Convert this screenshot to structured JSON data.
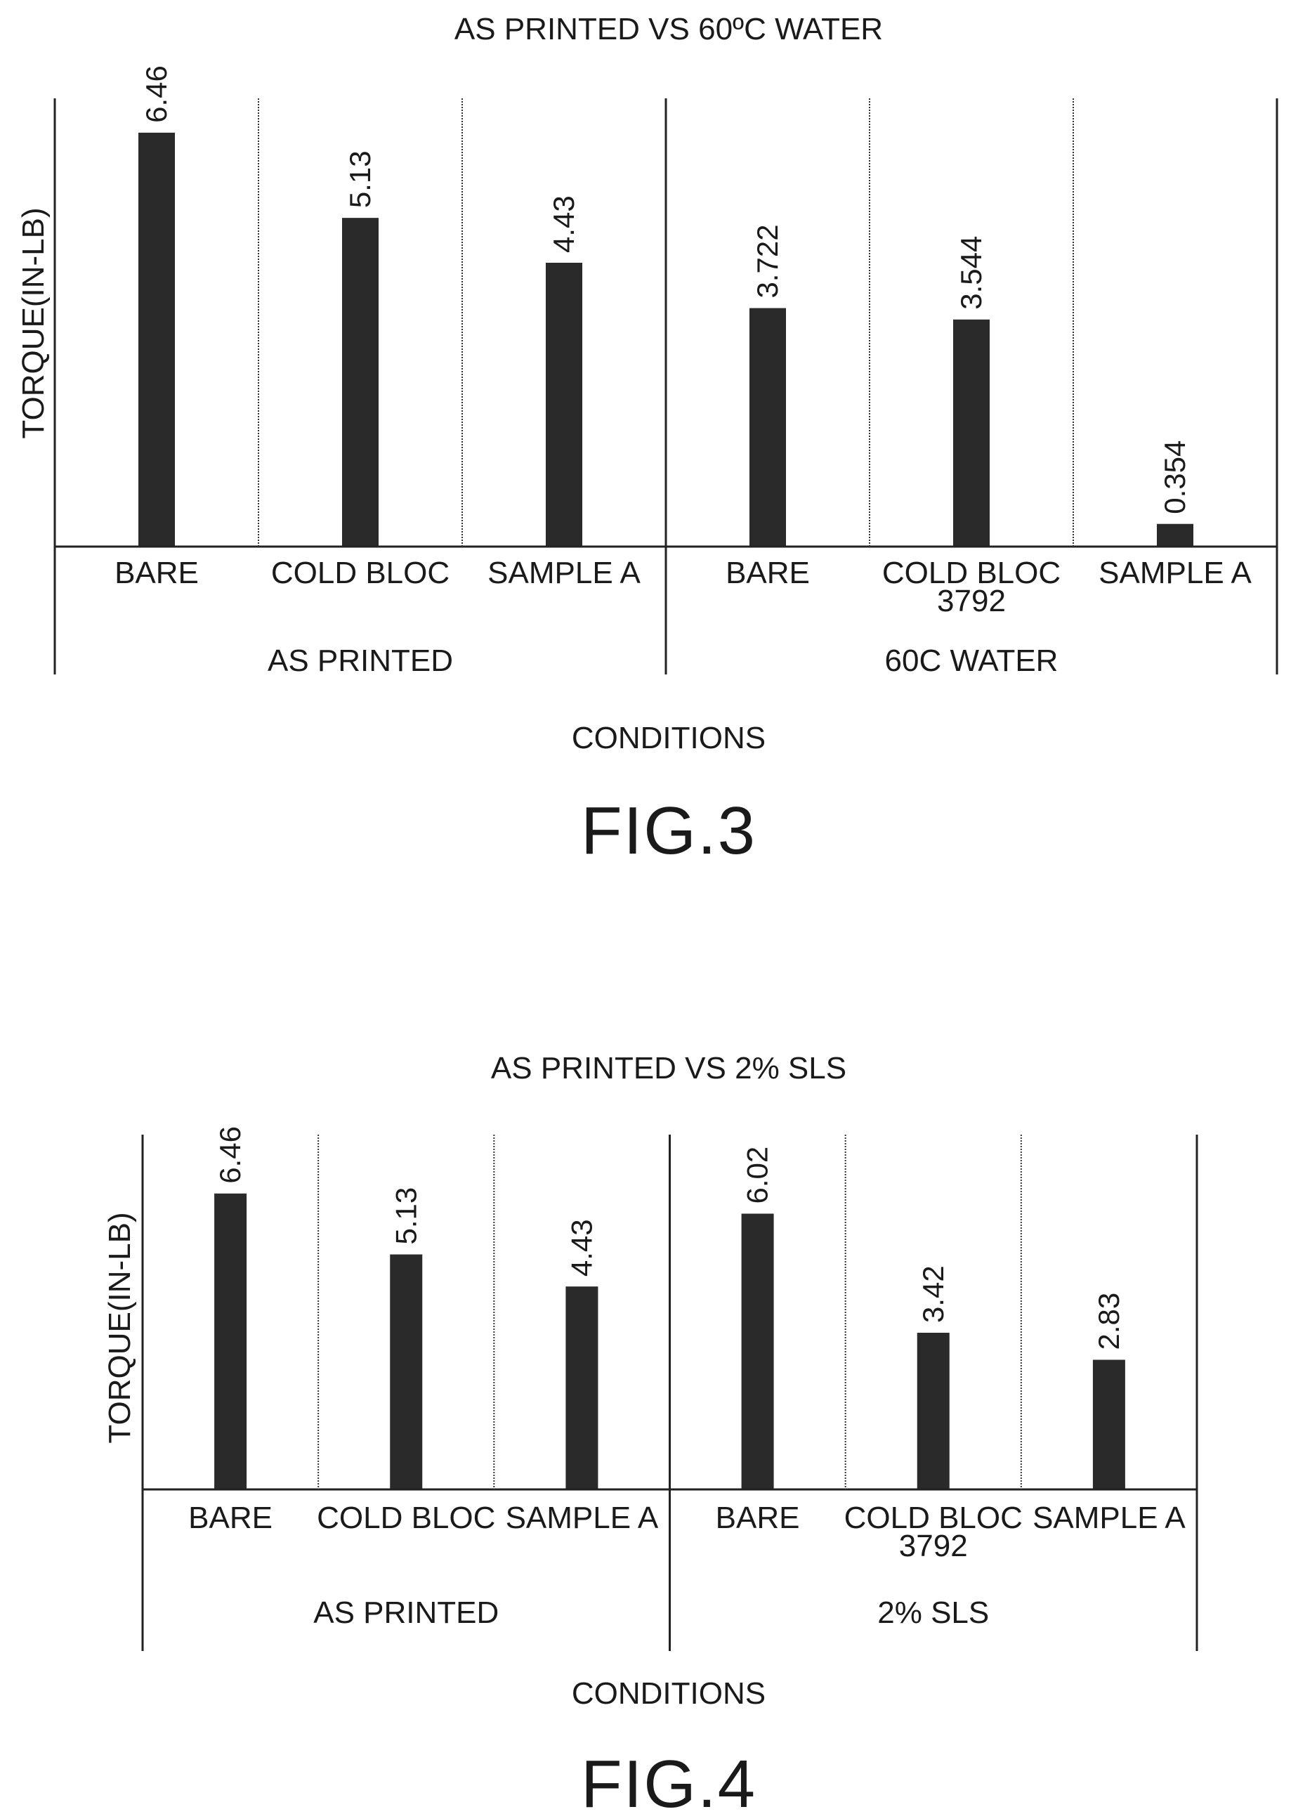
{
  "colors": {
    "bar": "#2a2a2a",
    "axis": "#222222"
  },
  "chart_data": [
    {
      "type": "bar",
      "title": "AS PRINTED VS 60ºC WATER",
      "ylabel": "TORQUE(IN-LB)",
      "xlabel": "CONDITIONS",
      "figure_label": "FIG.3",
      "ylim": [
        0,
        7
      ],
      "grid": false,
      "groups": [
        {
          "name": "AS PRINTED",
          "categories": [
            "BARE",
            "COLD BLOC",
            "SAMPLE A"
          ],
          "values": [
            6.46,
            5.13,
            4.43
          ],
          "labels": [
            "6.46",
            "5.13",
            "4.43"
          ]
        },
        {
          "name": "60C WATER",
          "categories": [
            "BARE",
            "COLD BLOC\n3792",
            "SAMPLE A"
          ],
          "values": [
            3.722,
            3.544,
            0.354
          ],
          "labels": [
            "3.722",
            "3.544",
            "0.354"
          ]
        }
      ]
    },
    {
      "type": "bar",
      "title": "AS PRINTED VS 2% SLS",
      "ylabel": "TORQUE(IN-LB)",
      "xlabel": "CONDITIONS",
      "figure_label": "FIG.4",
      "ylim": [
        0,
        7
      ],
      "grid": false,
      "groups": [
        {
          "name": "AS PRINTED",
          "categories": [
            "BARE",
            "COLD BLOC",
            "SAMPLE A"
          ],
          "values": [
            6.46,
            5.13,
            4.43
          ],
          "labels": [
            "6.46",
            "5.13",
            "4.43"
          ]
        },
        {
          "name": "2% SLS",
          "categories": [
            "BARE",
            "COLD BLOC\n3792",
            "SAMPLE A"
          ],
          "values": [
            6.02,
            3.42,
            2.83
          ],
          "labels": [
            "6.02",
            "3.42",
            "2.83"
          ]
        }
      ]
    }
  ]
}
